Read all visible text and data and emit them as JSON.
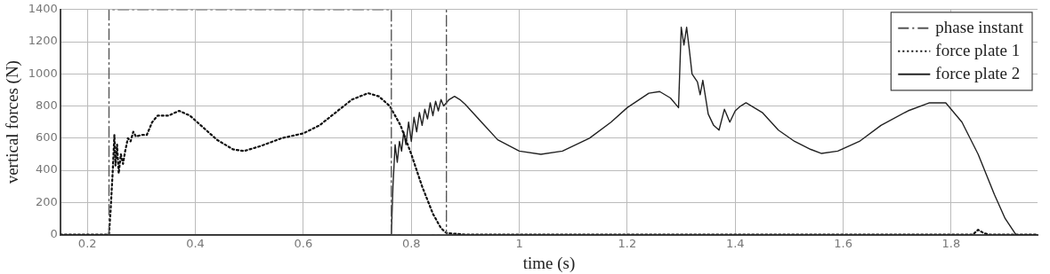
{
  "chart_data": {
    "type": "line",
    "xlabel": "time (s)",
    "ylabel": "vertical forces (N)",
    "xlim": [
      0.15,
      1.96
    ],
    "xticks": [
      0.2,
      0.4,
      0.6,
      0.8,
      1,
      1.2,
      1.4,
      1.6,
      1.8
    ],
    "ylim": [
      0,
      1400
    ],
    "yticks": [
      0,
      200,
      400,
      600,
      800,
      1000,
      1200,
      1400
    ],
    "grid": true,
    "legend": "top right",
    "marker": "none",
    "series": [
      {
        "name": "phase instant",
        "color": "#555555",
        "line_style": "dashed",
        "x": [
          0.24,
          0.24,
          0.763,
          0.763,
          0.865,
          0.865
        ],
        "values": [
          0,
          1400,
          1400,
          0,
          0,
          1400
        ]
      },
      {
        "name": "force plate 1",
        "color": "#111111",
        "line_style": "dotted",
        "x": [
          0.15,
          0.24,
          0.243,
          0.247,
          0.25,
          0.252,
          0.255,
          0.258,
          0.262,
          0.266,
          0.27,
          0.275,
          0.28,
          0.285,
          0.29,
          0.3,
          0.31,
          0.32,
          0.33,
          0.35,
          0.37,
          0.39,
          0.41,
          0.44,
          0.47,
          0.49,
          0.52,
          0.56,
          0.6,
          0.63,
          0.66,
          0.69,
          0.72,
          0.74,
          0.76,
          0.78,
          0.8,
          0.82,
          0.84,
          0.855,
          0.865,
          0.9,
          1.2,
          1.6,
          1.84,
          1.85,
          1.86,
          1.87,
          1.96
        ],
        "values": [
          0,
          0,
          150,
          400,
          620,
          430,
          560,
          380,
          500,
          440,
          520,
          600,
          580,
          640,
          610,
          620,
          620,
          700,
          740,
          740,
          770,
          740,
          680,
          590,
          530,
          520,
          550,
          600,
          630,
          680,
          760,
          840,
          880,
          860,
          800,
          680,
          500,
          300,
          130,
          40,
          10,
          0,
          0,
          0,
          0,
          30,
          10,
          0,
          0
        ]
      },
      {
        "name": "force plate 2",
        "color": "#222222",
        "line_style": "solid",
        "x": [
          0.15,
          0.763,
          0.766,
          0.77,
          0.774,
          0.778,
          0.782,
          0.786,
          0.79,
          0.795,
          0.8,
          0.805,
          0.81,
          0.815,
          0.82,
          0.825,
          0.83,
          0.835,
          0.84,
          0.845,
          0.85,
          0.855,
          0.86,
          0.87,
          0.88,
          0.89,
          0.9,
          0.93,
          0.96,
          1.0,
          1.04,
          1.08,
          1.13,
          1.17,
          1.2,
          1.24,
          1.26,
          1.28,
          1.295,
          1.3,
          1.305,
          1.31,
          1.315,
          1.32,
          1.33,
          1.335,
          1.34,
          1.35,
          1.36,
          1.37,
          1.38,
          1.39,
          1.4,
          1.41,
          1.42,
          1.45,
          1.48,
          1.51,
          1.54,
          1.56,
          1.59,
          1.63,
          1.67,
          1.72,
          1.76,
          1.79,
          1.82,
          1.85,
          1.88,
          1.9,
          1.92,
          1.96
        ],
        "values": [
          0,
          0,
          300,
          560,
          450,
          580,
          520,
          640,
          560,
          700,
          580,
          730,
          640,
          760,
          680,
          780,
          720,
          820,
          740,
          830,
          770,
          840,
          800,
          840,
          860,
          840,
          810,
          700,
          590,
          520,
          500,
          520,
          600,
          700,
          790,
          880,
          890,
          850,
          790,
          1290,
          1180,
          1290,
          1150,
          1000,
          950,
          870,
          960,
          750,
          680,
          650,
          780,
          700,
          770,
          800,
          820,
          760,
          650,
          580,
          530,
          505,
          520,
          580,
          680,
          770,
          820,
          820,
          700,
          500,
          250,
          100,
          0,
          0
        ]
      }
    ]
  }
}
